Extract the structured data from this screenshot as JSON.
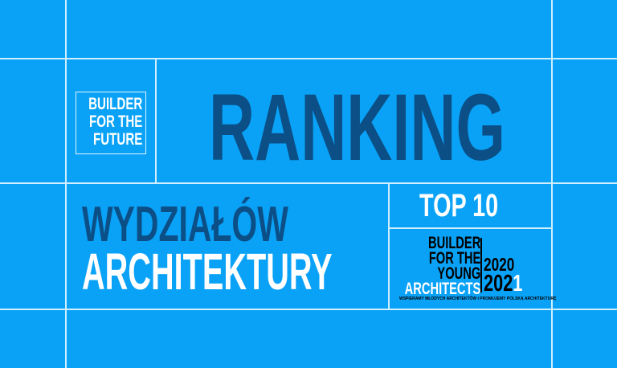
{
  "logo": {
    "line1": "BUILDER",
    "line2": "FOR THE",
    "line3": "FUTURE"
  },
  "title": "RANKING",
  "subtitle1": "WYDZIAŁÓW",
  "subtitle2": "ARCHITEKTURY",
  "badge": "TOP 10",
  "byfa": {
    "line1": "BUILDER",
    "line2": "FOR THE",
    "line3": "YOUNG",
    "line4": "ARCHITECTS",
    "year1": "2020",
    "year2": "202",
    "year2_last": "1",
    "tagline": "WSPIERAMY MŁODYCH ARCHITEKTÓW I PROMUJEMY POLSKĄ ARCHITEKTURĘ"
  },
  "colors": {
    "background": "#0aa2f7",
    "dark": "#0b4f86",
    "white": "#ffffff"
  }
}
